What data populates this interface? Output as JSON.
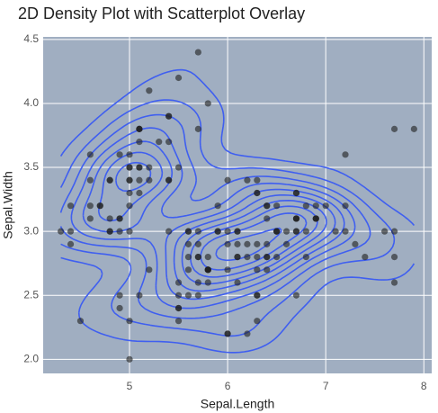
{
  "chart_data": {
    "type": "scatter",
    "title": "2D Density Plot with Scatterplot Overlay",
    "x_label": "Sepal.Length",
    "y_label": "Sepal.Width",
    "x": [
      5.1,
      4.9,
      4.7,
      4.6,
      5.0,
      5.4,
      4.6,
      5.0,
      4.4,
      4.9,
      5.4,
      4.8,
      4.8,
      4.3,
      5.8,
      5.7,
      5.4,
      5.1,
      5.7,
      5.1,
      5.4,
      5.1,
      4.6,
      5.1,
      4.8,
      5.0,
      5.0,
      5.2,
      5.2,
      4.7,
      4.8,
      5.4,
      5.2,
      5.5,
      4.9,
      5.0,
      5.5,
      4.9,
      4.4,
      5.1,
      5.0,
      4.5,
      4.4,
      5.0,
      5.1,
      4.8,
      5.1,
      4.6,
      5.3,
      5.0,
      7.0,
      6.4,
      6.9,
      5.5,
      6.5,
      5.7,
      6.3,
      4.9,
      6.6,
      5.2,
      5.0,
      5.9,
      6.0,
      6.1,
      5.6,
      6.7,
      5.6,
      5.8,
      6.2,
      5.6,
      5.9,
      6.1,
      6.3,
      6.1,
      6.4,
      6.6,
      6.8,
      6.7,
      6.0,
      5.7,
      5.5,
      5.5,
      5.8,
      6.0,
      5.4,
      6.0,
      6.7,
      6.3,
      5.6,
      5.5,
      5.5,
      6.1,
      5.8,
      5.0,
      5.6,
      5.7,
      5.7,
      6.2,
      5.1,
      5.7,
      6.3,
      5.8,
      7.1,
      6.3,
      6.5,
      7.6,
      4.9,
      7.3,
      6.7,
      7.2,
      6.5,
      6.4,
      6.8,
      5.7,
      5.8,
      6.4,
      6.5,
      7.7,
      7.7,
      6.0,
      6.9,
      5.6,
      7.7,
      6.3,
      6.7,
      7.2,
      6.2,
      6.1,
      6.4,
      7.2,
      7.4,
      7.9,
      6.4,
      6.3,
      6.1,
      7.7,
      6.3,
      6.4,
      6.0,
      6.9,
      6.7,
      6.9,
      5.8,
      6.8,
      6.7,
      6.7,
      6.3,
      6.5,
      6.2,
      5.9
    ],
    "values": [
      3.5,
      3.0,
      3.2,
      3.1,
      3.6,
      3.9,
      3.4,
      3.4,
      2.9,
      3.1,
      3.7,
      3.4,
      3.0,
      3.0,
      4.0,
      4.4,
      3.9,
      3.5,
      3.8,
      3.8,
      3.4,
      3.7,
      3.6,
      3.3,
      3.4,
      3.0,
      3.4,
      3.5,
      3.4,
      3.2,
      3.1,
      3.4,
      4.1,
      4.2,
      3.1,
      3.2,
      3.5,
      3.6,
      3.0,
      3.4,
      3.5,
      2.3,
      3.2,
      3.5,
      3.8,
      3.0,
      3.8,
      3.2,
      3.7,
      3.3,
      3.2,
      3.2,
      3.1,
      2.3,
      2.8,
      2.8,
      3.3,
      2.4,
      2.9,
      2.7,
      2.0,
      3.0,
      2.2,
      2.9,
      2.9,
      3.1,
      3.0,
      2.7,
      2.2,
      2.5,
      3.2,
      2.8,
      2.5,
      2.8,
      2.9,
      3.0,
      2.8,
      3.0,
      2.9,
      2.6,
      2.4,
      2.4,
      2.7,
      2.7,
      3.0,
      3.4,
      3.1,
      2.3,
      3.0,
      2.5,
      2.6,
      3.0,
      2.6,
      2.3,
      2.7,
      3.0,
      2.9,
      2.9,
      2.5,
      2.8,
      3.3,
      2.7,
      3.0,
      2.9,
      3.0,
      3.0,
      2.5,
      2.9,
      2.5,
      3.6,
      3.2,
      2.7,
      3.0,
      2.5,
      2.8,
      3.2,
      3.0,
      3.8,
      2.6,
      2.2,
      3.2,
      2.8,
      2.8,
      2.7,
      3.3,
      3.2,
      2.8,
      3.0,
      2.8,
      3.0,
      2.8,
      3.8,
      2.8,
      2.8,
      2.6,
      3.0,
      3.4,
      3.1,
      3.0,
      3.1,
      3.1,
      3.1,
      2.7,
      3.2,
      3.3,
      3.0,
      2.5,
      3.0,
      3.4,
      3.0
    ],
    "point_color": "rgba(30,30,30,0.6)",
    "contour_color": "#3f5ff0",
    "background": "#a0aec1",
    "xlim": [
      4.12,
      8.08
    ],
    "ylim": [
      1.89,
      4.52
    ],
    "xticks": [
      5,
      6,
      7,
      8
    ],
    "yticks": [
      {
        "value": 2,
        "label": "2.0"
      },
      2.5,
      {
        "value": 3,
        "label": "3.0"
      },
      3.5,
      {
        "value": 4,
        "label": "4.0"
      },
      4.5
    ],
    "grid": true
  }
}
